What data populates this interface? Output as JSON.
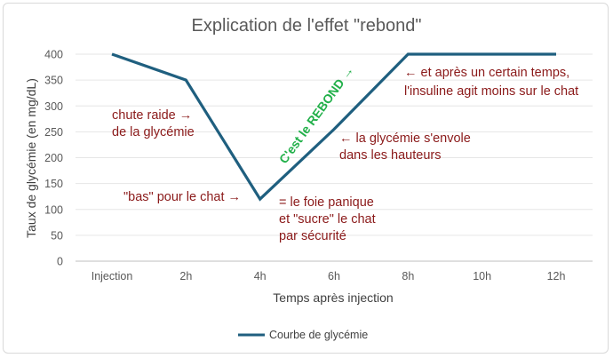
{
  "chart_data": {
    "type": "line",
    "title": "Explication de l'effet \"rebond\"",
    "xlabel": "Temps après injection",
    "ylabel": "Taux de glycémie (en mg/dL)",
    "categories": [
      "Injection",
      "2h",
      "4h",
      "6h",
      "8h",
      "10h",
      "12h"
    ],
    "yticks": [
      0,
      50,
      100,
      150,
      200,
      250,
      300,
      350,
      400
    ],
    "ylim": [
      0,
      400
    ],
    "grid": true,
    "legend_position": "bottom",
    "series": [
      {
        "name": "Courbe de glycémie",
        "color": "#1f5f7f",
        "x": [
          0,
          2,
          4,
          6,
          8,
          10,
          12
        ],
        "values": [
          400,
          350,
          120,
          255,
          400,
          400,
          400
        ]
      }
    ],
    "annotations": [
      {
        "id": "chute",
        "lines": [
          "chute raide →",
          "de la glycémie"
        ],
        "color": "#8b1a1a"
      },
      {
        "id": "bas",
        "lines": [
          "\"bas\" pour le chat →"
        ],
        "color": "#8b1a1a"
      },
      {
        "id": "foie",
        "lines": [
          "= le foie panique",
          "et \"sucre\" le chat",
          "par sécurité"
        ],
        "color": "#8b1a1a"
      },
      {
        "id": "rebond",
        "lines": [
          "C'est le REBOND →"
        ],
        "color": "#22b04a"
      },
      {
        "id": "envole",
        "lines": [
          "← la glycémie s'envole",
          "dans les hauteurs"
        ],
        "color": "#8b1a1a"
      },
      {
        "id": "insuline",
        "lines": [
          "← et après un certain temps,",
          "l'insuline agit moins sur le chat"
        ],
        "color": "#8b1a1a"
      }
    ]
  }
}
